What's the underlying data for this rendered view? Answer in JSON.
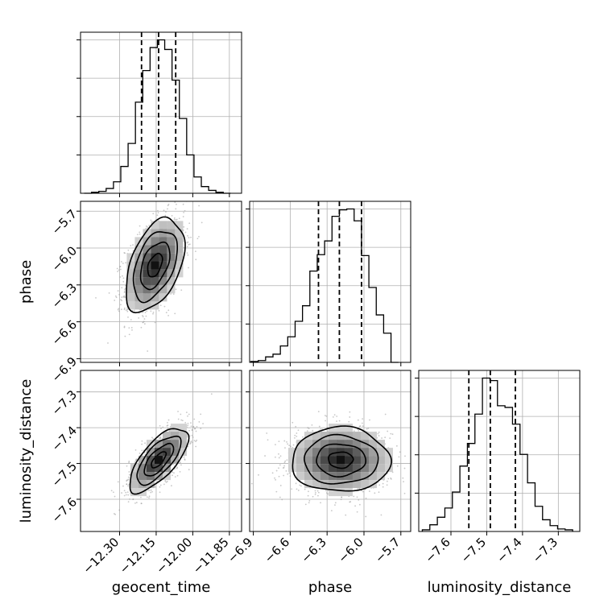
{
  "chart_data": {
    "type": "corner",
    "parameters": [
      "geocent_time",
      "phase",
      "luminosity_distance"
    ],
    "grid": true,
    "quantile_lines": {
      "geocent_time": [
        -12.21,
        -12.14,
        -12.07
      ],
      "phase": [
        -6.37,
        -6.2,
        -6.02
      ],
      "luminosity_distance": [
        -7.55,
        -7.49,
        -7.42
      ]
    },
    "axes": {
      "geocent_time": {
        "range": [
          -12.46,
          -11.8
        ],
        "ticks": [
          -12.3,
          -12.15,
          -12.0,
          -11.85
        ],
        "tick_labels": [
          "−12.30",
          "−12.15",
          "−12.00",
          "−11.85"
        ]
      },
      "phase": {
        "range": [
          -6.93,
          -5.62
        ],
        "ticks": [
          -6.9,
          -6.6,
          -6.3,
          -6.0,
          -5.7
        ],
        "tick_labels": [
          "−6.9",
          "−6.6",
          "−6.3",
          "−6.0",
          "−5.7"
        ]
      },
      "luminosity_distance": {
        "range": [
          -7.69,
          -7.24
        ],
        "ticks": [
          -7.6,
          -7.5,
          -7.4,
          -7.3
        ],
        "tick_labels": [
          "−7.6",
          "−7.5",
          "−7.4",
          "−7.3"
        ]
      }
    },
    "histograms": {
      "geocent_time": {
        "bin_edges": [
          -12.445,
          -12.415,
          -12.385,
          -12.355,
          -12.325,
          -12.295,
          -12.265,
          -12.235,
          -12.205,
          -12.175,
          -12.145,
          -12.115,
          -12.085,
          -12.055,
          -12.025,
          -11.995,
          -11.965,
          -11.935,
          -11.905,
          -11.875,
          -11.845
        ],
        "counts": [
          0,
          1,
          2,
          5,
          12,
          28,
          52,
          95,
          128,
          152,
          160,
          150,
          118,
          78,
          40,
          17,
          7,
          3,
          1,
          0
        ]
      },
      "phase": {
        "bin_edges": [
          -6.92,
          -6.86,
          -6.8,
          -6.74,
          -6.68,
          -6.62,
          -6.56,
          -6.5,
          -6.44,
          -6.38,
          -6.32,
          -6.26,
          -6.2,
          -6.14,
          -6.08,
          -6.02,
          -5.96,
          -5.9,
          -5.84,
          -5.78,
          -5.72
        ],
        "counts": [
          1,
          2,
          6,
          9,
          18,
          28,
          45,
          62,
          100,
          118,
          133,
          160,
          167,
          168,
          155,
          117,
          82,
          52,
          32,
          0
        ]
      },
      "luminosity_distance": {
        "bin_edges": [
          -7.68,
          -7.659,
          -7.638,
          -7.617,
          -7.596,
          -7.575,
          -7.554,
          -7.533,
          -7.512,
          -7.491,
          -7.47,
          -7.449,
          -7.428,
          -7.407,
          -7.386,
          -7.365,
          -7.344,
          -7.323,
          -7.302,
          -7.281,
          -7.26
        ],
        "counts": [
          2,
          8,
          17,
          28,
          47,
          78,
          105,
          140,
          183,
          180,
          150,
          148,
          128,
          92,
          58,
          30,
          14,
          7,
          3,
          2
        ]
      }
    },
    "joint": [
      {
        "x": "geocent_time",
        "y": "phase",
        "mean": [
          -12.155,
          -6.14
        ],
        "sd": [
          0.06,
          0.19
        ],
        "corr": 0.45
      },
      {
        "x": "geocent_time",
        "y": "luminosity_distance",
        "mean": [
          -12.14,
          -7.49
        ],
        "sd": [
          0.06,
          0.045
        ],
        "corr": 0.7
      },
      {
        "x": "phase",
        "y": "luminosity_distance",
        "mean": [
          -6.19,
          -7.49
        ],
        "sd": [
          0.2,
          0.045
        ],
        "corr": 0.0
      }
    ]
  }
}
